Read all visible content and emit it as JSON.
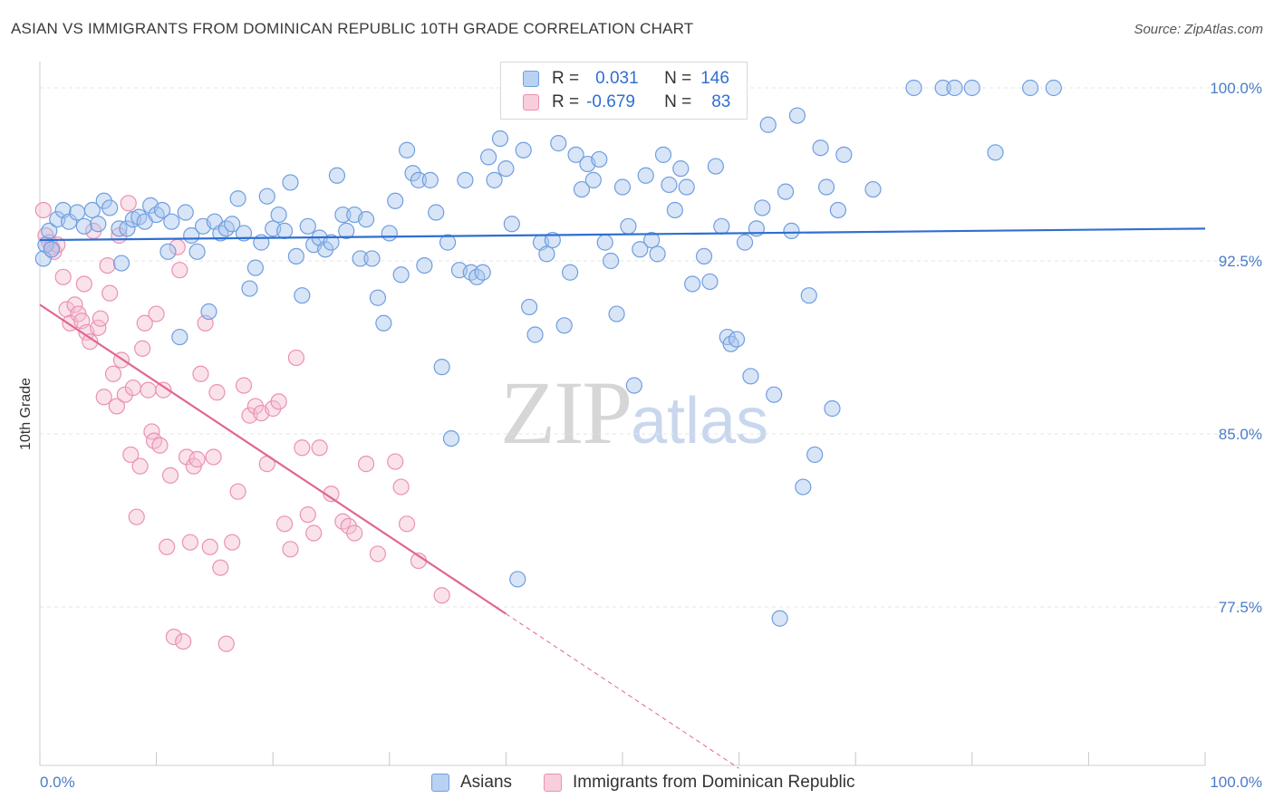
{
  "header": {
    "title": "ASIAN VS IMMIGRANTS FROM DOMINICAN REPUBLIC 10TH GRADE CORRELATION CHART",
    "source": "Source: ZipAtlas.com"
  },
  "watermark": {
    "zip": "ZIP",
    "atlas": "atlas"
  },
  "legend": {
    "rows": [
      {
        "r_label": "R =",
        "r_value": "0.031",
        "n_label": "N =",
        "n_value": "146"
      },
      {
        "r_label": "R =",
        "r_value": "-0.679",
        "n_label": "N =",
        "n_value": "83"
      }
    ]
  },
  "bottom_legend": {
    "asians": "Asians",
    "dominican": "Immigrants from Dominican Republic"
  },
  "colors": {
    "asian_fill": "#a9c6ee",
    "asian_stroke": "#6f9ee0",
    "asian_line": "#2f6fd1",
    "dominican_fill": "#f5bfd2",
    "dominican_stroke": "#eb91b3",
    "dominican_line": "#e0668f",
    "grid": "#e4e4e4",
    "tick_text": "#4a7cc7"
  },
  "chart_data": {
    "type": "scatter",
    "title": "ASIAN VS IMMIGRANTS FROM DOMINICAN REPUBLIC 10TH GRADE CORRELATION CHART",
    "xlabel": "",
    "ylabel": "10th Grade",
    "xlim": [
      0,
      100
    ],
    "ylim": [
      71,
      100.5
    ],
    "x_tick_labels": [
      "0.0%",
      "100.0%"
    ],
    "y_ticks": [
      77.5,
      85.0,
      92.5,
      100.0
    ],
    "y_tick_labels": [
      "77.5%",
      "85.0%",
      "92.5%",
      "100.0%"
    ],
    "grid": true,
    "legend_position": "top-center",
    "series": [
      {
        "name": "Asians",
        "r": 0.031,
        "n": 146,
        "trend": {
          "x": [
            0,
            100
          ],
          "y": [
            93.4,
            93.9
          ]
        },
        "points": [
          [
            0.3,
            92.6
          ],
          [
            0.5,
            93.2
          ],
          [
            0.8,
            93.8
          ],
          [
            1,
            93.0
          ],
          [
            1.5,
            94.3
          ],
          [
            2,
            94.7
          ],
          [
            2.5,
            94.2
          ],
          [
            3.2,
            94.6
          ],
          [
            3.8,
            94.0
          ],
          [
            4.5,
            94.7
          ],
          [
            5,
            94.1
          ],
          [
            5.5,
            95.1
          ],
          [
            6,
            94.8
          ],
          [
            6.8,
            93.9
          ],
          [
            7,
            92.4
          ],
          [
            7.5,
            93.9
          ],
          [
            8,
            94.3
          ],
          [
            8.5,
            94.4
          ],
          [
            9,
            94.2
          ],
          [
            9.5,
            94.9
          ],
          [
            10,
            94.5
          ],
          [
            10.5,
            94.7
          ],
          [
            11,
            92.9
          ],
          [
            11.3,
            94.2
          ],
          [
            12,
            89.2
          ],
          [
            12.5,
            94.6
          ],
          [
            13,
            93.6
          ],
          [
            13.5,
            92.9
          ],
          [
            14,
            94.0
          ],
          [
            14.5,
            90.3
          ],
          [
            15,
            94.2
          ],
          [
            15.5,
            93.7
          ],
          [
            16,
            93.9
          ],
          [
            16.5,
            94.1
          ],
          [
            17,
            95.2
          ],
          [
            17.5,
            93.7
          ],
          [
            18,
            91.3
          ],
          [
            18.5,
            92.2
          ],
          [
            19,
            93.3
          ],
          [
            19.5,
            95.3
          ],
          [
            20,
            93.9
          ],
          [
            20.5,
            94.5
          ],
          [
            21,
            93.8
          ],
          [
            21.5,
            95.9
          ],
          [
            22,
            92.7
          ],
          [
            22.5,
            91.0
          ],
          [
            23,
            94.0
          ],
          [
            23.5,
            93.2
          ],
          [
            24,
            93.5
          ],
          [
            24.5,
            93.0
          ],
          [
            25,
            93.3
          ],
          [
            25.5,
            96.2
          ],
          [
            26,
            94.5
          ],
          [
            26.3,
            93.8
          ],
          [
            27,
            94.5
          ],
          [
            27.5,
            92.6
          ],
          [
            28,
            94.3
          ],
          [
            28.5,
            92.6
          ],
          [
            29,
            90.9
          ],
          [
            29.5,
            89.8
          ],
          [
            30,
            93.7
          ],
          [
            30.5,
            95.1
          ],
          [
            31,
            91.9
          ],
          [
            31.5,
            97.3
          ],
          [
            32,
            96.3
          ],
          [
            32.5,
            96.0
          ],
          [
            33,
            92.3
          ],
          [
            33.5,
            96.0
          ],
          [
            34,
            94.6
          ],
          [
            34.5,
            87.9
          ],
          [
            35,
            93.3
          ],
          [
            35.3,
            84.8
          ],
          [
            36,
            92.1
          ],
          [
            36.5,
            96.0
          ],
          [
            37,
            92.0
          ],
          [
            37.5,
            91.8
          ],
          [
            38,
            92.0
          ],
          [
            38.5,
            97.0
          ],
          [
            39,
            96.0
          ],
          [
            39.5,
            97.8
          ],
          [
            40,
            96.5
          ],
          [
            40.5,
            94.1
          ],
          [
            41,
            78.7
          ],
          [
            41.5,
            97.3
          ],
          [
            42,
            90.5
          ],
          [
            42.5,
            89.3
          ],
          [
            43,
            93.3
          ],
          [
            43.5,
            92.8
          ],
          [
            44,
            93.4
          ],
          [
            44.5,
            97.6
          ],
          [
            45,
            89.7
          ],
          [
            45.5,
            92.0
          ],
          [
            46,
            97.1
          ],
          [
            46.5,
            95.6
          ],
          [
            47,
            96.7
          ],
          [
            47.5,
            96.0
          ],
          [
            48,
            96.9
          ],
          [
            48.5,
            93.3
          ],
          [
            49,
            92.5
          ],
          [
            49.5,
            90.2
          ],
          [
            50,
            95.7
          ],
          [
            50.5,
            94.0
          ],
          [
            51,
            87.1
          ],
          [
            51.5,
            93.0
          ],
          [
            52,
            96.2
          ],
          [
            52.5,
            93.4
          ],
          [
            53,
            92.8
          ],
          [
            53.5,
            97.1
          ],
          [
            54,
            95.8
          ],
          [
            54.5,
            94.7
          ],
          [
            55,
            96.5
          ],
          [
            55.5,
            95.7
          ],
          [
            56,
            91.5
          ],
          [
            57,
            92.7
          ],
          [
            57.5,
            91.6
          ],
          [
            58,
            96.6
          ],
          [
            58.5,
            94.0
          ],
          [
            59,
            89.2
          ],
          [
            59.3,
            88.9
          ],
          [
            59.8,
            89.1
          ],
          [
            60.5,
            93.3
          ],
          [
            61,
            87.5
          ],
          [
            61.5,
            93.9
          ],
          [
            62,
            94.8
          ],
          [
            62.5,
            98.4
          ],
          [
            63,
            86.7
          ],
          [
            63.5,
            77.0
          ],
          [
            64,
            95.5
          ],
          [
            64.5,
            93.8
          ],
          [
            65,
            98.8
          ],
          [
            65.5,
            82.7
          ],
          [
            66,
            91.0
          ],
          [
            66.5,
            84.1
          ],
          [
            67,
            97.4
          ],
          [
            67.5,
            95.7
          ],
          [
            68,
            86.1
          ],
          [
            68.5,
            94.7
          ],
          [
            69,
            97.1
          ],
          [
            71.5,
            95.6
          ],
          [
            75,
            100.0
          ],
          [
            77.5,
            100.0
          ],
          [
            78.5,
            100.0
          ],
          [
            80,
            100.0
          ],
          [
            82,
            97.2
          ],
          [
            85,
            100.0
          ],
          [
            87,
            100.0
          ]
        ]
      },
      {
        "name": "Immigrants from Dominican Republic",
        "r": -0.679,
        "n": 83,
        "trend": {
          "x": [
            0,
            40
          ],
          "y": [
            90.6,
            77.2
          ]
        },
        "trend_dashed": {
          "x": [
            40,
            60
          ],
          "y": [
            77.2,
            70.5
          ]
        },
        "points": [
          [
            0.3,
            94.7
          ],
          [
            0.5,
            93.6
          ],
          [
            0.8,
            93.3
          ],
          [
            1,
            93.1
          ],
          [
            1.2,
            92.9
          ],
          [
            1.5,
            93.2
          ],
          [
            2,
            91.8
          ],
          [
            2.3,
            90.4
          ],
          [
            2.6,
            89.8
          ],
          [
            3,
            90.6
          ],
          [
            3.3,
            90.2
          ],
          [
            3.6,
            89.9
          ],
          [
            3.8,
            91.5
          ],
          [
            4,
            89.4
          ],
          [
            4.3,
            89.0
          ],
          [
            4.6,
            93.8
          ],
          [
            5,
            89.6
          ],
          [
            5.2,
            90.0
          ],
          [
            5.5,
            86.6
          ],
          [
            5.8,
            92.3
          ],
          [
            6,
            91.1
          ],
          [
            6.3,
            87.6
          ],
          [
            6.6,
            86.2
          ],
          [
            6.8,
            93.6
          ],
          [
            7,
            88.2
          ],
          [
            7.3,
            86.7
          ],
          [
            7.6,
            95.0
          ],
          [
            7.8,
            84.1
          ],
          [
            8,
            87.0
          ],
          [
            8.3,
            81.4
          ],
          [
            8.6,
            83.6
          ],
          [
            8.8,
            88.7
          ],
          [
            9,
            89.8
          ],
          [
            9.3,
            86.9
          ],
          [
            9.6,
            85.1
          ],
          [
            9.8,
            84.7
          ],
          [
            10,
            90.2
          ],
          [
            10.3,
            84.5
          ],
          [
            10.6,
            86.9
          ],
          [
            10.9,
            80.1
          ],
          [
            11.2,
            83.2
          ],
          [
            11.5,
            76.2
          ],
          [
            11.8,
            93.1
          ],
          [
            12,
            92.1
          ],
          [
            12.3,
            76.0
          ],
          [
            12.6,
            84.0
          ],
          [
            12.9,
            80.3
          ],
          [
            13.2,
            83.6
          ],
          [
            13.5,
            83.9
          ],
          [
            13.8,
            87.6
          ],
          [
            14.2,
            89.8
          ],
          [
            14.6,
            80.1
          ],
          [
            14.9,
            84.0
          ],
          [
            15.2,
            86.8
          ],
          [
            15.5,
            79.2
          ],
          [
            16,
            75.9
          ],
          [
            16.5,
            80.3
          ],
          [
            17,
            82.5
          ],
          [
            17.5,
            87.1
          ],
          [
            18,
            85.8
          ],
          [
            18.5,
            86.2
          ],
          [
            19,
            85.9
          ],
          [
            19.5,
            83.7
          ],
          [
            20,
            86.1
          ],
          [
            20.5,
            86.4
          ],
          [
            21,
            81.1
          ],
          [
            21.5,
            80.0
          ],
          [
            22,
            88.3
          ],
          [
            22.5,
            84.4
          ],
          [
            23,
            81.5
          ],
          [
            23.5,
            80.7
          ],
          [
            24,
            84.4
          ],
          [
            25,
            82.4
          ],
          [
            26,
            81.2
          ],
          [
            26.5,
            81.0
          ],
          [
            27,
            80.7
          ],
          [
            28,
            83.7
          ],
          [
            29,
            79.8
          ],
          [
            30.5,
            83.8
          ],
          [
            31,
            82.7
          ],
          [
            31.5,
            81.1
          ],
          [
            32.5,
            79.5
          ],
          [
            34.5,
            78.0
          ]
        ]
      }
    ]
  }
}
